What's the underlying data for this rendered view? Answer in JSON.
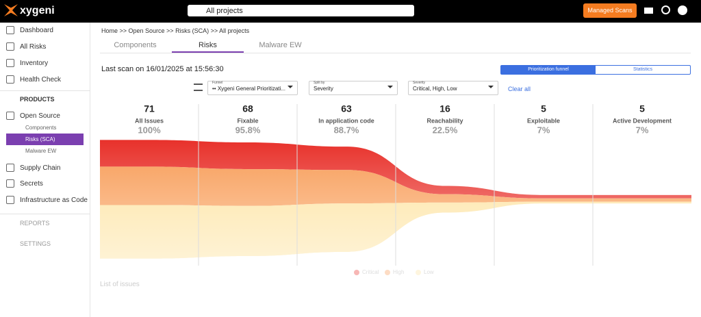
{
  "header": {
    "logo": "xygeni",
    "search": "All projects",
    "button": "Managed Scans"
  },
  "sidebar": {
    "items": [
      "Dashboard",
      "All Risks",
      "Inventory",
      "Health Check"
    ],
    "section": "PRODUCTS",
    "open_source": "Open Source",
    "sub_items": [
      "Components",
      "Risks (SCA)",
      "Malware EW"
    ],
    "more_items": [
      "Supply Chain",
      "Secrets",
      "Infrastructure as Code"
    ],
    "collapsed": [
      "REPORTS",
      "SETTINGS"
    ]
  },
  "breadcrumb": "Home >> Open Source >> Risks (SCA) >> All projects",
  "tabs": [
    "Components",
    "Risks",
    "Malware EW"
  ],
  "last_scan": "Last scan on 16/01/2025 at 15:56:30",
  "toggle": [
    "Prioritization funnel",
    "Statistics"
  ],
  "filters": [
    {
      "label": "Funnel",
      "value": "•• Xygeni General Prioritizati..."
    },
    {
      "label": "Split by",
      "value": "Severity"
    },
    {
      "label": "Severity",
      "value": "Critical, High, Low"
    }
  ],
  "clear_all": "Clear all",
  "chart_data": {
    "type": "funnel",
    "categories": [
      "All Issues",
      "Fixable",
      "In application code",
      "Reachability",
      "Exploitable",
      "Active Development"
    ],
    "values": [
      71,
      68,
      63,
      16,
      5,
      5
    ],
    "shares": [
      "100%",
      "95.8%",
      "88.7%",
      "22.5%",
      "7%",
      "7%"
    ],
    "series": [
      {
        "name": "Critical",
        "color": "#e8312b",
        "values": [
          16,
          16,
          14,
          5,
          2,
          2
        ]
      },
      {
        "name": "High",
        "color": "#f89b55",
        "values": [
          23,
          22,
          20,
          5,
          2,
          2
        ]
      },
      {
        "name": "Low",
        "color": "#fde3a0",
        "values": [
          32,
          30,
          29,
          6,
          1,
          1
        ]
      }
    ]
  },
  "footer": "List of issues"
}
